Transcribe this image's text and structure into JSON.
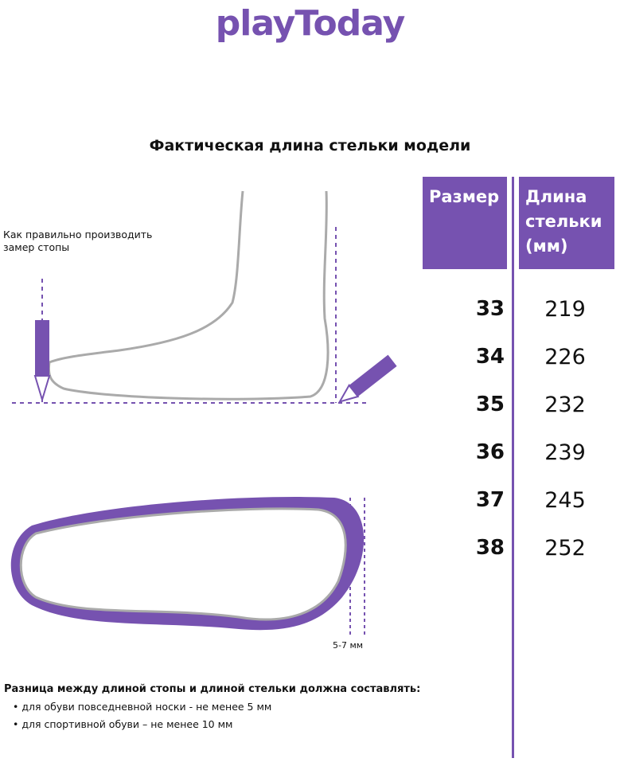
{
  "brand": {
    "logo": "playToday",
    "color": "#7652b0"
  },
  "title": "Фактическая длина стельки модели",
  "measure_hint": [
    "Как правильно производить",
    "замер стопы"
  ],
  "toe_gap_label": "5-7 мм",
  "table": {
    "headers": [
      "Размер",
      "Длина стельки (мм)"
    ],
    "rows": [
      {
        "size": "33",
        "length": "219"
      },
      {
        "size": "34",
        "length": "226"
      },
      {
        "size": "35",
        "length": "232"
      },
      {
        "size": "36",
        "length": "239"
      },
      {
        "size": "37",
        "length": "245"
      },
      {
        "size": "38",
        "length": "252"
      }
    ]
  },
  "notes": {
    "heading": "Разница между длиной стопы и длиной стельки должна составлять:",
    "items": [
      "для обуви повседневной носки -  не менее 5 мм",
      "для спортивной обуви – не менее 10 мм"
    ]
  }
}
